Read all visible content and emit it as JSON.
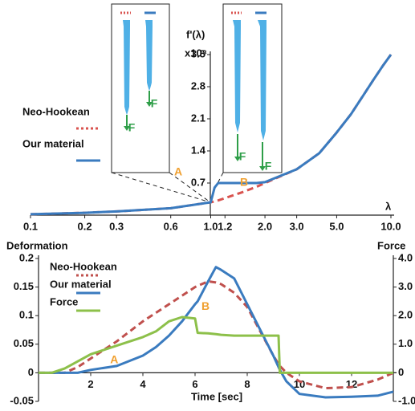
{
  "chart_data": [
    {
      "type": "line",
      "y_label": "f'(λ)",
      "y_unit": "x10⁸",
      "x_label": "λ",
      "xscale": "log",
      "x": [
        0.1,
        0.2,
        0.3,
        0.6,
        1.0,
        1.05,
        1.1,
        1.5,
        1.8,
        2.0,
        3.0,
        4.0,
        5.0,
        6.0,
        7.0,
        8.0,
        9.0,
        10.0
      ],
      "series": [
        {
          "name": "Neo-Hookean",
          "color": "#d9534f",
          "dash": true,
          "values": [
            0.02,
            0.05,
            0.08,
            0.15,
            0.28,
            0.3,
            0.32,
            0.5,
            0.62,
            0.7,
            1.0,
            1.35,
            1.8,
            2.2,
            2.6,
            2.95,
            3.25,
            3.5
          ]
        },
        {
          "name": "Our material",
          "color": "#3a7bbf",
          "dash": false,
          "values": [
            0.02,
            0.05,
            0.08,
            0.15,
            0.28,
            0.6,
            0.7,
            0.7,
            0.7,
            0.72,
            1.0,
            1.35,
            1.8,
            2.2,
            2.6,
            2.95,
            3.25,
            3.5
          ]
        }
      ],
      "xlim": [
        0.1,
        10
      ],
      "xticks": [
        0.1,
        0.2,
        0.3,
        0.6,
        {
          "value": 1,
          "label": "1.0"
        },
        1.2,
        {
          "value": 2,
          "label": "2.0"
        },
        {
          "value": 3,
          "label": "3.0"
        },
        {
          "value": 5,
          "label": "5.0"
        },
        {
          "value": 10,
          "label": "10.0"
        }
      ],
      "ylim": [
        0,
        3.5
      ],
      "yticks": [
        0.7,
        1.4,
        2.1,
        2.8,
        3.5
      ],
      "annotations": [
        "A",
        "B",
        "F",
        "F",
        "F",
        "F"
      ]
    },
    {
      "type": "line",
      "x_label": "Time [sec]",
      "y_label": "Deformation",
      "y2_label": "Force",
      "x": [
        0,
        0.5,
        1,
        1.5,
        2,
        3,
        4,
        4.5,
        5,
        5.5,
        6,
        6.1,
        6.5,
        6.8,
        7,
        7.5,
        8,
        9,
        9.2,
        9.25,
        9.5,
        10,
        11,
        12,
        13,
        13.6
      ],
      "series": [
        {
          "name": "Neo-Hookean",
          "color": "#c0504d",
          "dash": true,
          "values": [
            0,
            0,
            0,
            0.01,
            0.025,
            0.055,
            0.09,
            0.105,
            0.12,
            0.135,
            0.15,
            0.152,
            0.16,
            0.158,
            0.155,
            0.14,
            0.115,
            0.03,
            0.015,
            0.012,
            0,
            -0.015,
            -0.027,
            -0.025,
            -0.012,
            0
          ]
        },
        {
          "name": "Our material",
          "color": "#3a7bbf",
          "dash": false,
          "values": [
            0,
            0,
            0,
            0,
            0.005,
            0.012,
            0.03,
            0.045,
            0.065,
            0.09,
            0.12,
            0.125,
            0.16,
            0.185,
            0.18,
            0.165,
            0.12,
            0.03,
            0.01,
            0.005,
            -0.015,
            -0.037,
            -0.043,
            -0.042,
            -0.04,
            -0.033
          ]
        },
        {
          "name": "Force",
          "color": "#8dc04a",
          "dash": false,
          "axis": "y2",
          "values": [
            0,
            0,
            0.15,
            0.4,
            0.65,
            0.95,
            1.25,
            1.45,
            1.8,
            1.95,
            1.9,
            1.4,
            1.38,
            1.35,
            1.33,
            1.3,
            1.3,
            1.3,
            1.3,
            0,
            0,
            0,
            0,
            0,
            0,
            0
          ]
        }
      ],
      "xlim": [
        0,
        13.6
      ],
      "xticks": [
        2,
        4,
        6,
        8,
        10,
        12
      ],
      "ylim": [
        -0.05,
        0.2
      ],
      "yticks": [
        -0.05,
        0,
        0.05,
        0.1,
        0.15,
        0.2
      ],
      "y2lim": [
        -1,
        4
      ],
      "y2ticks": [
        {
          "value": -1,
          "label": "-1.0"
        },
        {
          "value": 0,
          "label": "0"
        },
        {
          "value": 1,
          "label": "1.0"
        },
        {
          "value": 2,
          "label": "2.0"
        },
        {
          "value": 3,
          "label": "3.0"
        },
        {
          "value": 4,
          "label": "4.0"
        }
      ],
      "annotations": [
        "A",
        "B"
      ]
    }
  ]
}
